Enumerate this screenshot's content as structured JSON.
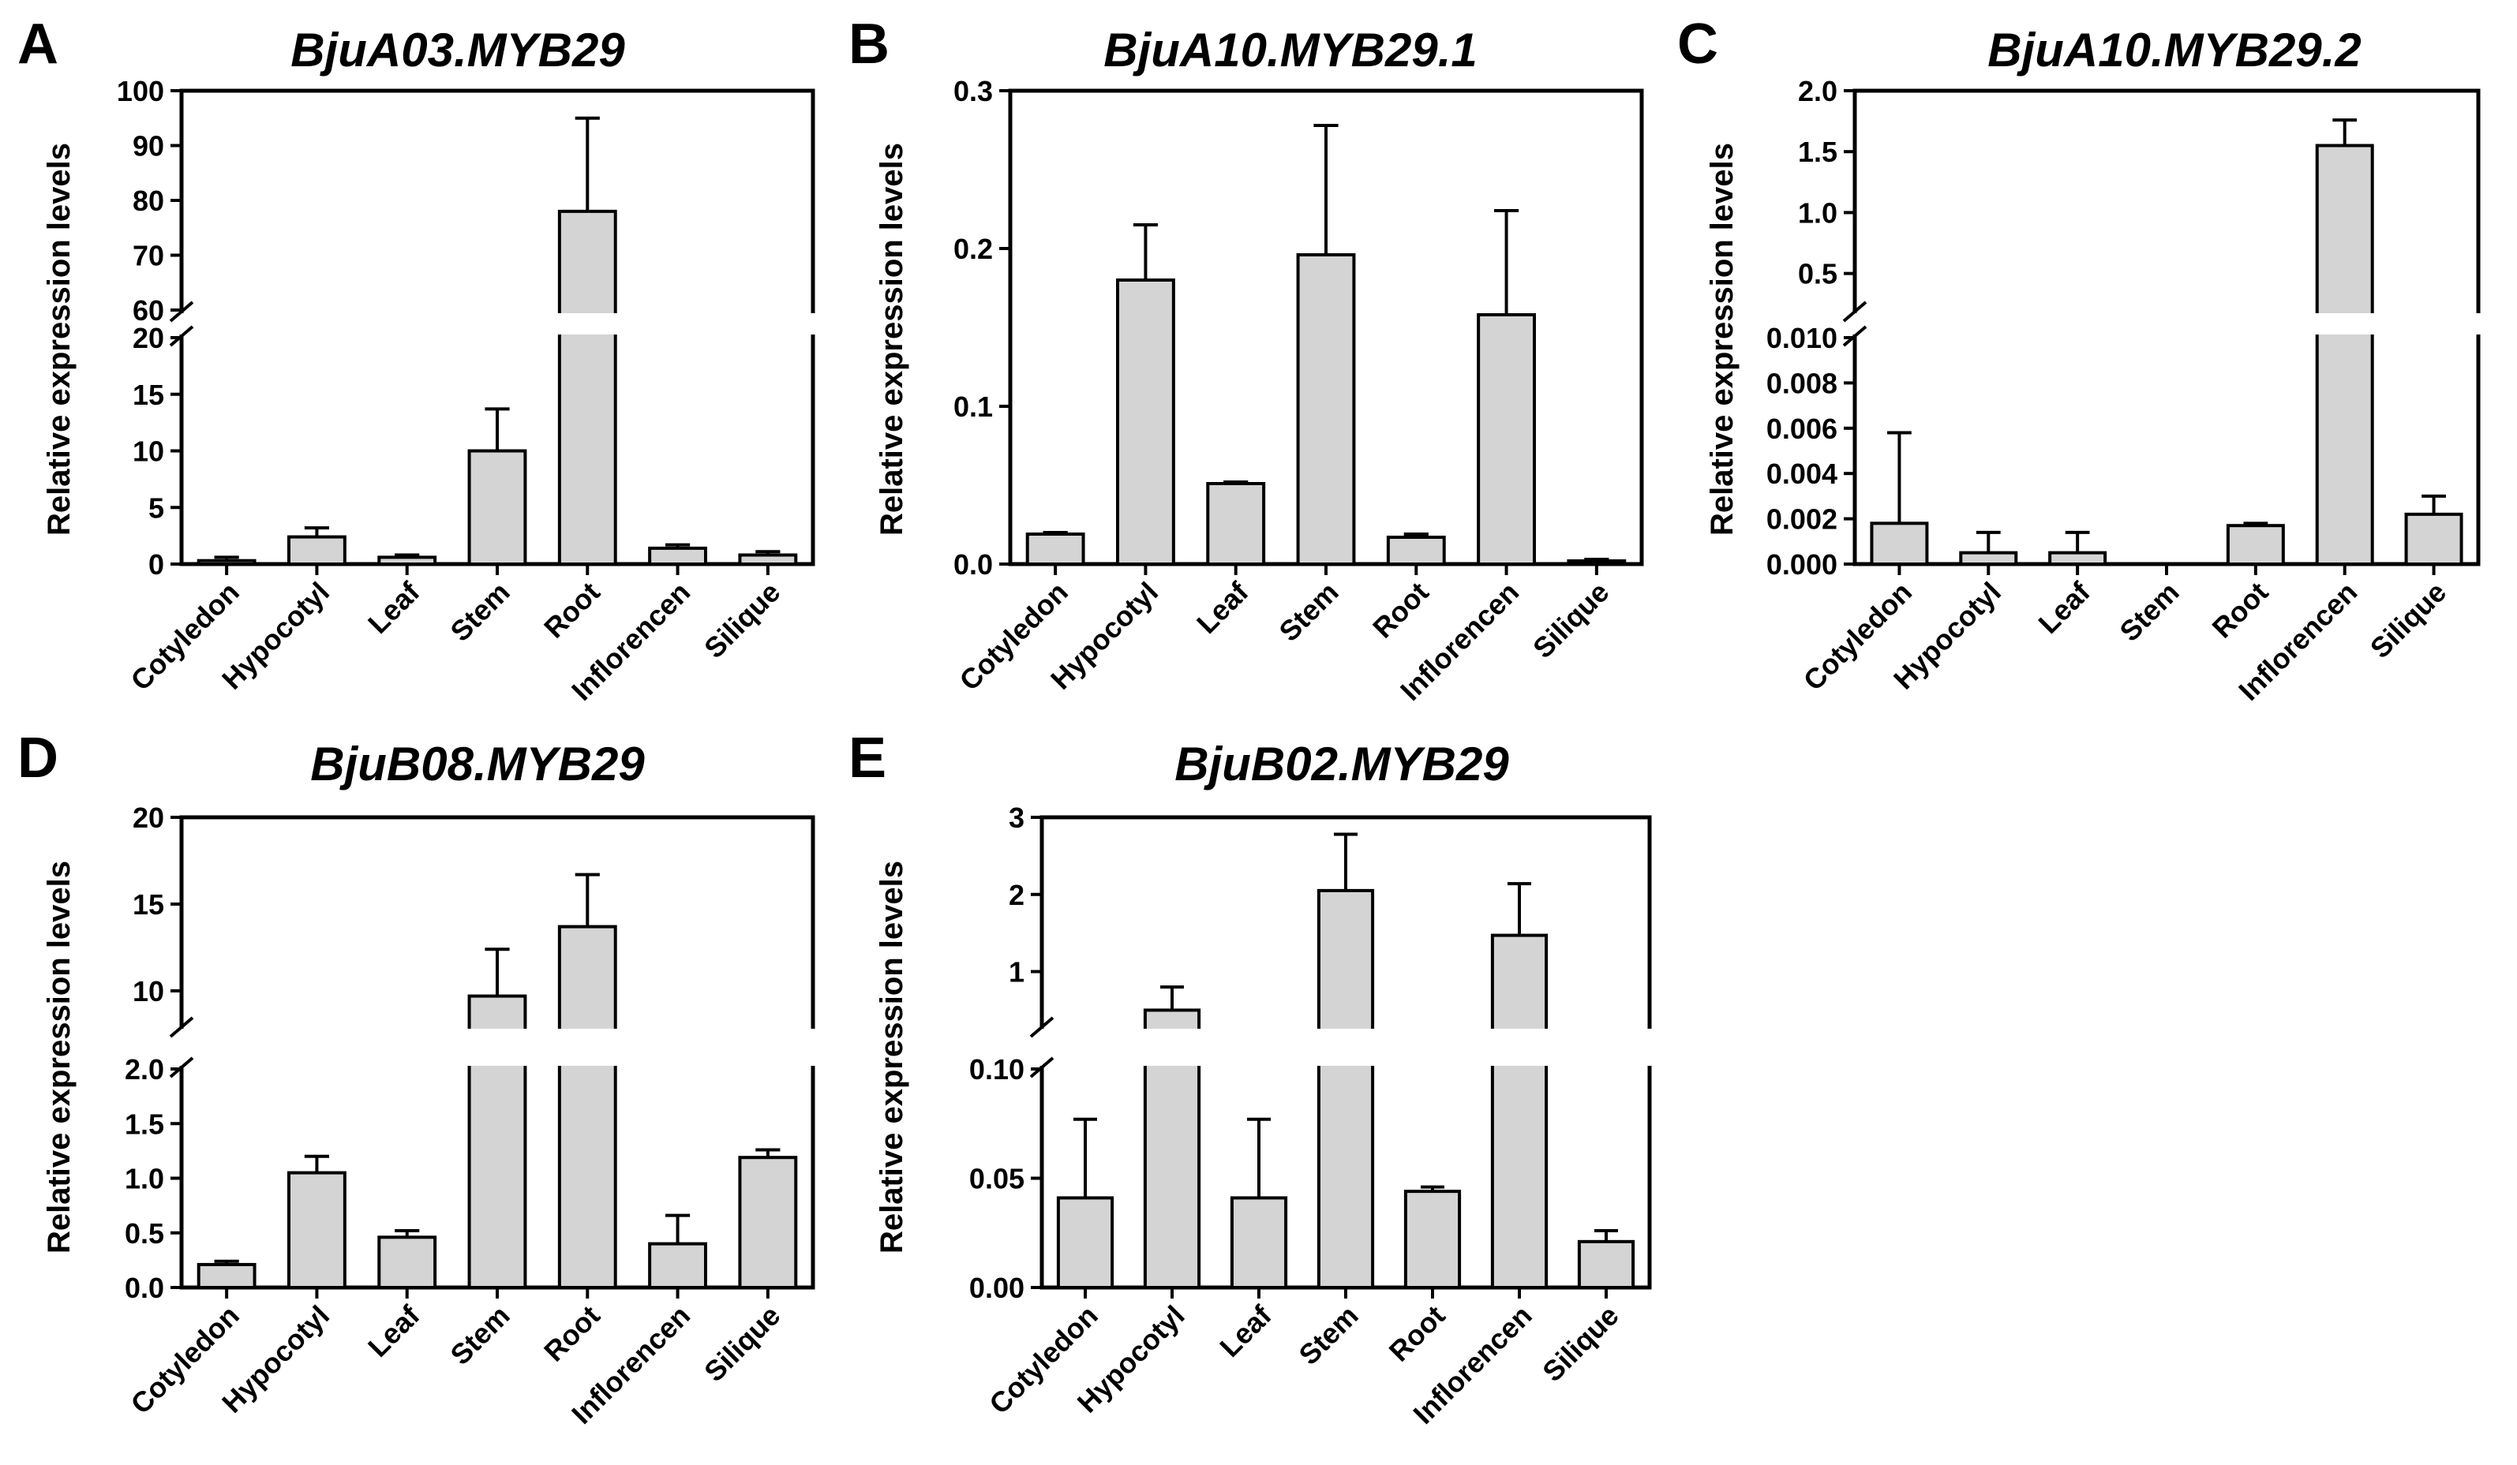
{
  "chart_data": [
    {
      "panel": "A",
      "type": "bar",
      "title": "BjuA03.MYB29",
      "xlabel": "",
      "ylabel": "Relative expression levels",
      "categories": [
        "Cotyledon",
        "Hypocotyl",
        "Leaf",
        "Stem",
        "Root",
        "Inflorencen",
        "Silique"
      ],
      "values": [
        0.3,
        2.4,
        0.6,
        10,
        78,
        1.4,
        0.8
      ],
      "errors": [
        0.3,
        0.8,
        0.2,
        3.7,
        17,
        0.3,
        0.3
      ],
      "axis_break": true,
      "lower_range": [
        0,
        20
      ],
      "upper_range": [
        60,
        100
      ],
      "lower_ticks": [
        "0",
        "5",
        "10",
        "15",
        "20"
      ],
      "upper_ticks": [
        "60",
        "70",
        "80",
        "90",
        "100"
      ]
    },
    {
      "panel": "B",
      "type": "bar",
      "title": "BjuA10.MYB29.1",
      "xlabel": "",
      "ylabel": "Relative expression levels",
      "categories": [
        "Cotyledon",
        "Hypocotyl",
        "Leaf",
        "Stem",
        "Root",
        "Inflorencen",
        "Silique"
      ],
      "values": [
        0.019,
        0.18,
        0.051,
        0.196,
        0.017,
        0.158,
        0.002
      ],
      "errors": [
        0.001,
        0.035,
        0.001,
        0.082,
        0.002,
        0.066,
        0.001
      ],
      "axis_break": false,
      "ylim": [
        0,
        0.3
      ],
      "ticks": [
        "0.0",
        "0.1",
        "0.2",
        "0.3"
      ]
    },
    {
      "panel": "C",
      "type": "bar",
      "title": "BjuA10.MYB29.2",
      "xlabel": "",
      "ylabel": "Relative expression levels",
      "categories": [
        "Cotyledon",
        "Hypocotyl",
        "Leaf",
        "Stem",
        "Root",
        "Inflorencen",
        "Silique"
      ],
      "values": [
        0.0018,
        0.0005,
        0.0005,
        0,
        0.0017,
        1.55,
        0.0022
      ],
      "errors": [
        0.004,
        0.0009,
        0.0009,
        0,
        0.0001,
        0.21,
        0.0008
      ],
      "axis_break": true,
      "lower_range": [
        0,
        0.01
      ],
      "upper_range": [
        0.2,
        2.0
      ],
      "lower_ticks": [
        "0.000",
        "0.002",
        "0.004",
        "0.006",
        "0.008",
        "0.010"
      ],
      "upper_ticks": [
        "0.5",
        "1.0",
        "1.5",
        "2.0"
      ]
    },
    {
      "panel": "D",
      "type": "bar",
      "title": "BjuB08.MYB29",
      "xlabel": "",
      "ylabel": "Relative expression levels",
      "categories": [
        "Cotyledon",
        "Hypocotyl",
        "Leaf",
        "Stem",
        "Root",
        "Inflorencen",
        "Silique"
      ],
      "values": [
        0.21,
        1.05,
        0.46,
        9.7,
        13.7,
        0.4,
        1.19
      ],
      "errors": [
        0.03,
        0.15,
        0.06,
        2.7,
        3.0,
        0.26,
        0.07
      ],
      "axis_break": true,
      "lower_range": [
        0,
        2.0
      ],
      "upper_range": [
        8,
        20
      ],
      "lower_ticks": [
        "0.0",
        "0.5",
        "1.0",
        "1.5",
        "2.0"
      ],
      "upper_ticks": [
        "10",
        "15",
        "20"
      ]
    },
    {
      "panel": "E",
      "type": "bar",
      "title": "BjuB02.MYB29",
      "xlabel": "",
      "ylabel": "Relative expression levels",
      "categories": [
        "Cotyledon",
        "Hypocotyl",
        "Leaf",
        "Stem",
        "Root",
        "Inflorencen",
        "Silique"
      ],
      "values": [
        0.041,
        0.5,
        0.041,
        2.05,
        0.044,
        1.47,
        0.021
      ],
      "errors": [
        0.036,
        0.3,
        0.036,
        0.73,
        0.002,
        0.67,
        0.005
      ],
      "axis_break": true,
      "lower_range": [
        0,
        0.1
      ],
      "upper_range": [
        0.3,
        3
      ],
      "lower_ticks": [
        "0.00",
        "0.05",
        "0.10"
      ],
      "upper_ticks": [
        "1",
        "2",
        "3"
      ]
    }
  ],
  "colors": {
    "bar_fill": "#d4d4d4",
    "stroke": "#000000",
    "background": "#ffffff"
  }
}
